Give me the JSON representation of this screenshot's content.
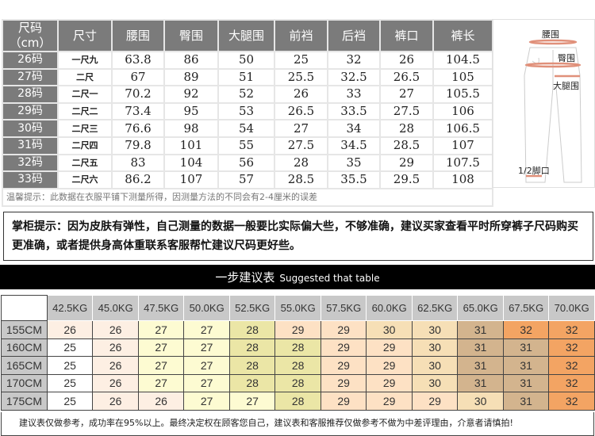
{
  "size_table": {
    "headers": [
      "尺码（cm）",
      "尺寸",
      "腰围",
      "臀围",
      "大腿围",
      "前裆",
      "后裆",
      "裤口",
      "裤长"
    ],
    "rows": [
      [
        "26码",
        "一尺九",
        "63.8",
        "86",
        "50",
        "25",
        "32",
        "26",
        "104.5"
      ],
      [
        "27码",
        "二尺",
        "67",
        "89",
        "51",
        "25.5",
        "32.5",
        "26.5",
        "105"
      ],
      [
        "28码",
        "二尺一",
        "70.2",
        "92",
        "52",
        "26",
        "33",
        "27",
        "105.5"
      ],
      [
        "29码",
        "二尺二",
        "73.4",
        "95",
        "53",
        "26.5",
        "33.5",
        "27.5",
        "106"
      ],
      [
        "30码",
        "二尺三",
        "76.6",
        "98",
        "54",
        "27",
        "34",
        "28",
        "106.5"
      ],
      [
        "31码",
        "二尺四",
        "79.8",
        "101",
        "55",
        "27.5",
        "34.5",
        "28.5",
        "107"
      ],
      [
        "32码",
        "二尺五",
        "83",
        "104",
        "56",
        "28",
        "35",
        "29",
        "107.5"
      ],
      [
        "33码",
        "二尺六",
        "86.2",
        "107",
        "57",
        "28.5",
        "35.5",
        "29.5",
        "108"
      ]
    ],
    "note": "温馨提示：此数据在衣服平铺下测量所得，因测量方法的不同会有2-4厘米的误差"
  },
  "diagram": {
    "labels": {
      "waist": "腰围",
      "hip": "臀围",
      "thigh": "大腿围",
      "hem": "1/2脚口"
    },
    "measure_color": "#e0907a"
  },
  "tip": "掌柜提示：因为皮肤有弹性，自己测量的数据一般要比实际偏大些，不够准确，建议买家查看平时所穿裤子尺码购买更准确，或者提供身高体重联系客服帮忙建议尺码更好些。",
  "banner": {
    "title_cn": "一步建议表",
    "title_en": "Suggested that table"
  },
  "weight_table": {
    "weights": [
      "42.5KG",
      "45.0KG",
      "47.5KG",
      "50.0KG",
      "52.5KG",
      "55.0KG",
      "57.5KG",
      "60.0KG",
      "62.5KG",
      "65.0KG",
      "67.5KG",
      "70.0KG"
    ],
    "rows": [
      {
        "height": "155CM",
        "sizes": [
          "26",
          "26",
          "27",
          "27",
          "28",
          "29",
          "29",
          "30",
          "30",
          "31",
          "32",
          "32"
        ]
      },
      {
        "height": "160CM",
        "sizes": [
          "25",
          "26",
          "27",
          "27",
          "28",
          "28",
          "29",
          "29",
          "30",
          "31",
          "31",
          "32"
        ]
      },
      {
        "height": "165CM",
        "sizes": [
          "25",
          "26",
          "27",
          "27",
          "28",
          "28",
          "29",
          "29",
          "30",
          "31",
          "31",
          "32"
        ]
      },
      {
        "height": "170CM",
        "sizes": [
          "25",
          "26",
          "27",
          "27",
          "28",
          "28",
          "29",
          "29",
          "30",
          "31",
          "31",
          "32"
        ]
      },
      {
        "height": "175CM",
        "sizes": [
          "25",
          "26",
          "26",
          "27",
          "27",
          "28",
          "29",
          "29",
          "29",
          "30",
          "31",
          "32"
        ]
      }
    ],
    "size_colors": {
      "25": "#ffffff",
      "26": "#fdefe3",
      "27": "#fdfbd2",
      "28": "#ebe6a6",
      "29": "#fde1c4",
      "30": "#f6dfb6",
      "31": "#d3b48e",
      "32": "#f3a463"
    },
    "note": "建议表仅做参考，成功率在95%以上。最终决定权在顾客您自己，建议表和客服推荐仅做参考不做为中差评理由，介意者请慎拍!"
  }
}
